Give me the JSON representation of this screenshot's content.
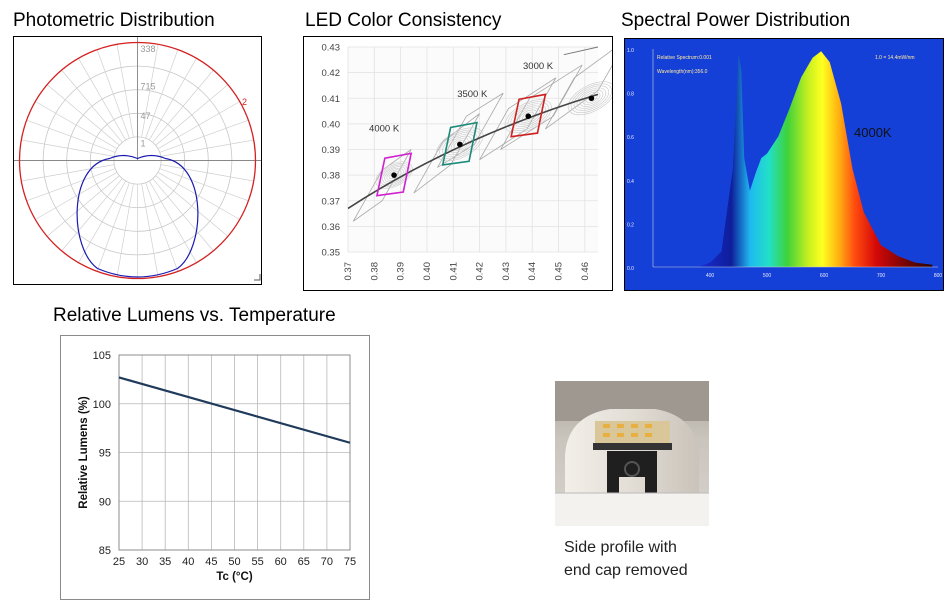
{
  "panels": {
    "photometric": {
      "title": "Photometric Distribution"
    },
    "color_consistency": {
      "title": "LED Color Consistency"
    },
    "spectral": {
      "title": "Spectral Power Distribution",
      "label": "4000K"
    },
    "lumens": {
      "title": "Relative Lumens vs. Temperature"
    },
    "profile": {
      "caption_line1": "Side profile with",
      "caption_line2": "end cap removed"
    }
  },
  "colors": {
    "red_curve": "#d42020",
    "blue_curve": "#1a1ab0",
    "spectrum_bg": "#1540d8",
    "line": "#1f3a5a"
  },
  "chart_data": [
    {
      "type": "line",
      "title": "Photometric Distribution",
      "polar": true,
      "radial_tick_labels": [
        "338",
        "715",
        "47",
        "1"
      ],
      "side_label": "2",
      "series": [
        {
          "color": "#d42020",
          "shape": "full circle"
        },
        {
          "color": "#1a1ab0",
          "shape": "lower-hemisphere lobe"
        }
      ]
    },
    {
      "type": "scatter",
      "title": "LED Color Consistency",
      "xlim": [
        0.37,
        0.465
      ],
      "ylim": [
        0.35,
        0.43
      ],
      "x_ticks": [
        "0.37",
        "0.38",
        "0.39",
        "0.40",
        "0.41",
        "0.42",
        "0.43",
        "0.44",
        "0.45",
        "0.46"
      ],
      "y_ticks": [
        "0.43",
        "0.42",
        "0.41",
        "0.40",
        "0.39",
        "0.38",
        "0.37",
        "0.36",
        "0.35"
      ],
      "annotations": [
        "4000 K",
        "3500 K",
        "3000 K"
      ],
      "points": [
        {
          "label": "4000 K",
          "x": 0.3875,
          "y": 0.38,
          "color": "#d020d0"
        },
        {
          "label": "3500 K",
          "x": 0.4125,
          "y": 0.392,
          "color": "#1a8a7a"
        },
        {
          "label": "3000 K",
          "x": 0.4385,
          "y": 0.403,
          "color": "#d02020"
        },
        {
          "label": "",
          "x": 0.4625,
          "y": 0.41,
          "color": "#000000"
        }
      ]
    },
    {
      "type": "area",
      "title": "Spectral Power Distribution",
      "annotation": "4000K",
      "x_ticks": [
        "400",
        "500",
        "600",
        "700",
        "800"
      ],
      "y_ticks": [
        "1.0",
        "0.8",
        "0.6",
        "0.4",
        "0.2",
        "0.0"
      ],
      "readouts": [
        "Relative Spectrum:0.001",
        "Wavelength(nm):356.0",
        "1.0 = 14.4mW/nm"
      ],
      "x": [
        380,
        400,
        420,
        440,
        450,
        455,
        460,
        470,
        480,
        490,
        500,
        520,
        540,
        560,
        580,
        595,
        610,
        630,
        650,
        670,
        700,
        730,
        760,
        790
      ],
      "values": [
        0,
        0.02,
        0.07,
        0.45,
        0.98,
        0.9,
        0.5,
        0.35,
        0.43,
        0.5,
        0.52,
        0.6,
        0.73,
        0.87,
        0.96,
        0.99,
        0.94,
        0.75,
        0.45,
        0.25,
        0.1,
        0.05,
        0.02,
        0.01
      ]
    },
    {
      "type": "line",
      "title": "Relative Lumens vs. Temperature",
      "xlabel": "Tc (°C)",
      "ylabel": "Relative Lumens (%)",
      "xlim": [
        25,
        75
      ],
      "ylim": [
        85,
        105
      ],
      "x_ticks": [
        25,
        30,
        35,
        40,
        45,
        50,
        55,
        60,
        65,
        70,
        75
      ],
      "y_ticks": [
        85,
        90,
        95,
        100,
        105
      ],
      "grid": true,
      "x": [
        25,
        75
      ],
      "values": [
        102.7,
        96.0
      ]
    }
  ]
}
